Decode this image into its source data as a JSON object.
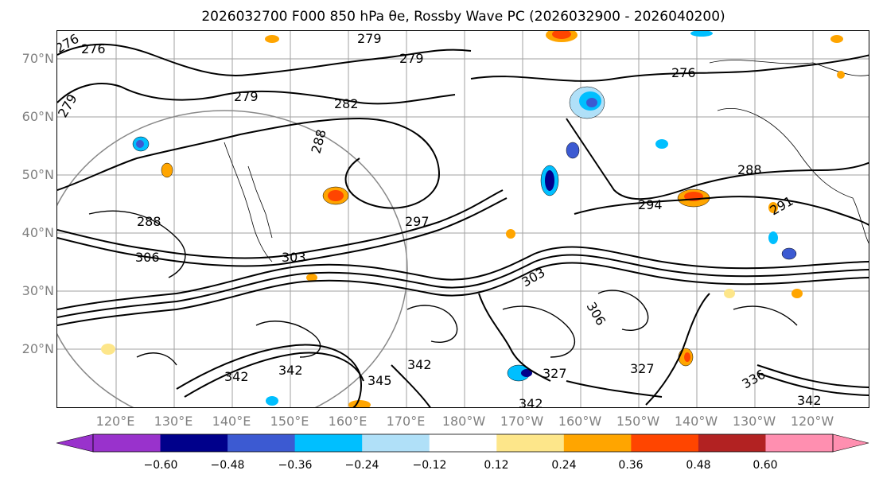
{
  "title": "2026032700 F000 850 hPa θe, Rossby Wave PC (2026032900 - 2026040200)",
  "lat_labels": [
    "70°N",
    "60°N",
    "50°N",
    "40°N",
    "30°N",
    "20°N"
  ],
  "lon_labels": [
    "120°E",
    "130°E",
    "140°E",
    "150°E",
    "160°E",
    "170°E",
    "180°W",
    "170°W",
    "160°W",
    "150°W",
    "140°W",
    "130°W",
    "120°W"
  ],
  "contour_labels": [
    "276",
    "279",
    "276",
    "279",
    "279",
    "276",
    "279",
    "282",
    "288",
    "288",
    "294",
    "297",
    "288",
    "291",
    "303",
    "306",
    "303",
    "327",
    "342",
    "345",
    "342",
    "342",
    "336",
    "342",
    "306",
    "342",
    "327"
  ],
  "colorbar": {
    "ticks": [
      "−0.60",
      "−0.48",
      "−0.36",
      "−0.24",
      "−0.12",
      "0.12",
      "0.24",
      "0.36",
      "0.48",
      "0.60"
    ],
    "colors": [
      "#9932cc",
      "#00008b",
      "#3c5ad2",
      "#00bfff",
      "#b0e0f8",
      "#ffffff",
      "#fde68a",
      "#ffa500",
      "#ff4500",
      "#b22222",
      "#ff8fb0",
      "#ff8fb0"
    ]
  },
  "colors": {
    "grid": "#8c8c8c",
    "contour": "#000000",
    "frame_text": "#808080"
  }
}
